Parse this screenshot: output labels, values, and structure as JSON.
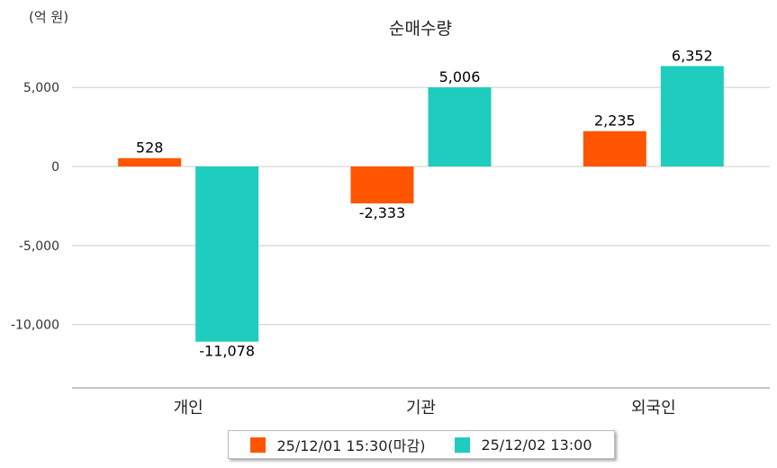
{
  "chart_data": {
    "type": "bar",
    "title": "순매수량",
    "unit_label": "(억 원)",
    "categories": [
      "개인",
      "기관",
      "외국인"
    ],
    "series": [
      {
        "name": "25/12/01 15:30(마감)",
        "color": "#ff5500",
        "values": [
          528,
          -2333,
          2235
        ]
      },
      {
        "name": "25/12/02 13:00",
        "color": "#1ecdbd",
        "values": [
          -11078,
          5006,
          6352
        ]
      }
    ],
    "data_labels": [
      [
        "528",
        "-2,333",
        "2,235"
      ],
      [
        "-11,078",
        "5,006",
        "6,352"
      ]
    ],
    "yticks": [
      5000,
      0,
      -5000,
      -10000
    ],
    "ytick_labels": [
      "5,000",
      "0",
      "-5,000",
      "-10,000"
    ],
    "ylim": [
      -14000,
      7000
    ],
    "grid": true,
    "legend_position": "bottom-center"
  }
}
